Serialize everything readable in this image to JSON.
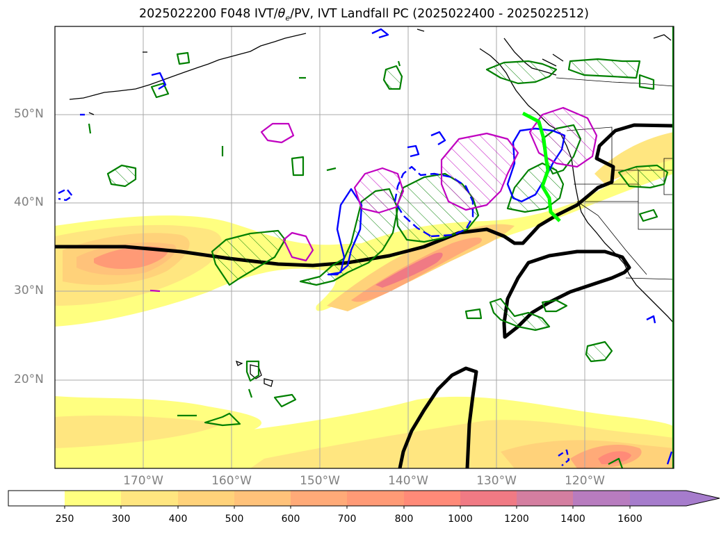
{
  "title": {
    "main": "2025022200 F048 IVT/",
    "theta": "θ",
    "theta_sub": "e",
    "rest": "/PV, IVT Landfall PC (2025022400 - 2025022512)"
  },
  "lat_labels": [
    "50°N",
    "40°N",
    "30°N",
    "20°N"
  ],
  "lon_labels": [
    "170°W",
    "160°W",
    "150°W",
    "140°W",
    "130°W",
    "120°W"
  ],
  "colorbar": {
    "ticks": [
      "250",
      "300",
      "400",
      "500",
      "600",
      "700",
      "800",
      "1000",
      "1200",
      "1400",
      "1600"
    ],
    "colors": [
      "#ffffff",
      "#ffff80",
      "#ffe680",
      "#ffd27a",
      "#ffc27a",
      "#ffaa78",
      "#ff9a76",
      "#ff8a78",
      "#f07a84",
      "#d47ea0",
      "#b87cbf",
      "#a67ccc"
    ]
  },
  "contour_colors": {
    "pv": "#000000",
    "theta_e": "#008000",
    "ivt_pc_positive": "#0000ff",
    "ivt_pc_highlight": "#c000c0",
    "landfall": "#00ff00"
  },
  "map_extent": {
    "lon_min": -180,
    "lon_max": -110,
    "lat_min": 10,
    "lat_max": 60
  }
}
